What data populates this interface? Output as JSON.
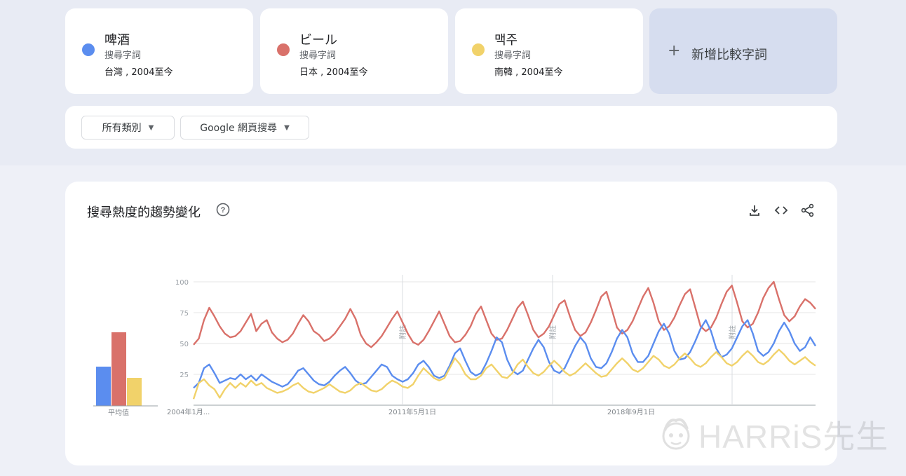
{
  "terms": [
    {
      "name": "啤酒",
      "type": "搜尋字詞",
      "region": "台灣 , 2004至今",
      "color": "#5b8def"
    },
    {
      "name": "ビール",
      "type": "搜尋字詞",
      "region": "日本 , 2004至今",
      "color": "#d9716a"
    },
    {
      "name": "맥주",
      "type": "搜尋字詞",
      "region": "南韓 , 2004至今",
      "color": "#f1d26a"
    }
  ],
  "add_compare": {
    "label": "新增比較字詞"
  },
  "filters": {
    "category": "所有類別",
    "property": "Google 網頁搜尋"
  },
  "chart_section": {
    "title": "搜尋熱度的趨勢變化",
    "note_label": "附註"
  },
  "icons": {
    "help": "help-circle-icon",
    "download": "download-icon",
    "embed": "code-icon",
    "share": "share-icon"
  },
  "watermark": {
    "text": "HARRiS先生"
  },
  "chart_data": [
    {
      "type": "bar",
      "categories": [
        "啤酒",
        "ビール",
        "맥주"
      ],
      "values": [
        35,
        66,
        25
      ],
      "xlabel": "平均值",
      "colors": [
        "#5b8def",
        "#d9716a",
        "#f1d26a"
      ]
    },
    {
      "type": "line",
      "x_start": "2004-01",
      "x_end": "2021-12",
      "x_tick_labels": [
        "2004年1月...",
        "2011年5月1日",
        "2018年9月1日"
      ],
      "y_ticks": [
        25,
        50,
        75,
        100
      ],
      "ylim": [
        0,
        100
      ],
      "grid": true,
      "series": [
        {
          "name": "ビール",
          "color": "#d9716a",
          "values": [
            49,
            54,
            69,
            79,
            72,
            64,
            58,
            55,
            56,
            60,
            67,
            74,
            60,
            66,
            69,
            59,
            54,
            51,
            53,
            58,
            66,
            73,
            68,
            60,
            57,
            52,
            54,
            58,
            64,
            70,
            78,
            70,
            57,
            50,
            47,
            51,
            56,
            63,
            70,
            76,
            67,
            58,
            51,
            49,
            53,
            60,
            68,
            76,
            66,
            56,
            51,
            52,
            57,
            64,
            74,
            80,
            69,
            58,
            53,
            54,
            61,
            70,
            79,
            84,
            73,
            61,
            55,
            58,
            64,
            73,
            82,
            85,
            72,
            61,
            56,
            59,
            67,
            77,
            88,
            92,
            78,
            63,
            58,
            61,
            68,
            78,
            88,
            95,
            83,
            68,
            61,
            64,
            71,
            81,
            90,
            94,
            79,
            64,
            60,
            63,
            71,
            82,
            92,
            97,
            83,
            68,
            63,
            66,
            75,
            87,
            95,
            100,
            86,
            73,
            68,
            72,
            80,
            86,
            83,
            78
          ]
        },
        {
          "name": "啤酒",
          "color": "#5b8def",
          "values": [
            14,
            18,
            30,
            33,
            26,
            18,
            20,
            22,
            21,
            25,
            21,
            24,
            20,
            25,
            22,
            19,
            17,
            15,
            17,
            22,
            28,
            30,
            25,
            20,
            17,
            16,
            19,
            24,
            28,
            31,
            26,
            20,
            17,
            18,
            23,
            28,
            33,
            31,
            24,
            21,
            19,
            21,
            26,
            33,
            36,
            31,
            24,
            22,
            24,
            32,
            42,
            46,
            36,
            27,
            24,
            26,
            34,
            44,
            55,
            51,
            37,
            28,
            25,
            28,
            37,
            46,
            53,
            47,
            35,
            28,
            26,
            30,
            39,
            48,
            55,
            50,
            38,
            31,
            30,
            34,
            43,
            54,
            61,
            55,
            42,
            35,
            35,
            40,
            50,
            60,
            66,
            58,
            44,
            37,
            38,
            43,
            52,
            62,
            69,
            60,
            46,
            39,
            41,
            46,
            55,
            64,
            69,
            58,
            44,
            40,
            43,
            50,
            60,
            67,
            60,
            50,
            44,
            47,
            55,
            48
          ]
        },
        {
          "name": "맥주",
          "color": "#f1d26a",
          "values": [
            5,
            18,
            21,
            16,
            13,
            6,
            13,
            18,
            14,
            18,
            15,
            20,
            16,
            18,
            14,
            12,
            10,
            11,
            13,
            16,
            18,
            14,
            11,
            10,
            12,
            14,
            17,
            14,
            11,
            10,
            12,
            16,
            18,
            15,
            12,
            11,
            13,
            17,
            20,
            18,
            15,
            14,
            17,
            24,
            30,
            26,
            22,
            20,
            22,
            30,
            38,
            33,
            25,
            21,
            21,
            24,
            30,
            33,
            28,
            23,
            22,
            26,
            33,
            37,
            31,
            26,
            24,
            27,
            32,
            36,
            32,
            27,
            24,
            26,
            30,
            34,
            30,
            26,
            23,
            24,
            29,
            34,
            38,
            34,
            29,
            27,
            30,
            35,
            40,
            37,
            32,
            30,
            33,
            38,
            42,
            38,
            33,
            31,
            34,
            39,
            43,
            39,
            34,
            32,
            35,
            40,
            44,
            40,
            35,
            33,
            36,
            41,
            45,
            41,
            36,
            33,
            36,
            39,
            35,
            32
          ]
        }
      ]
    }
  ]
}
